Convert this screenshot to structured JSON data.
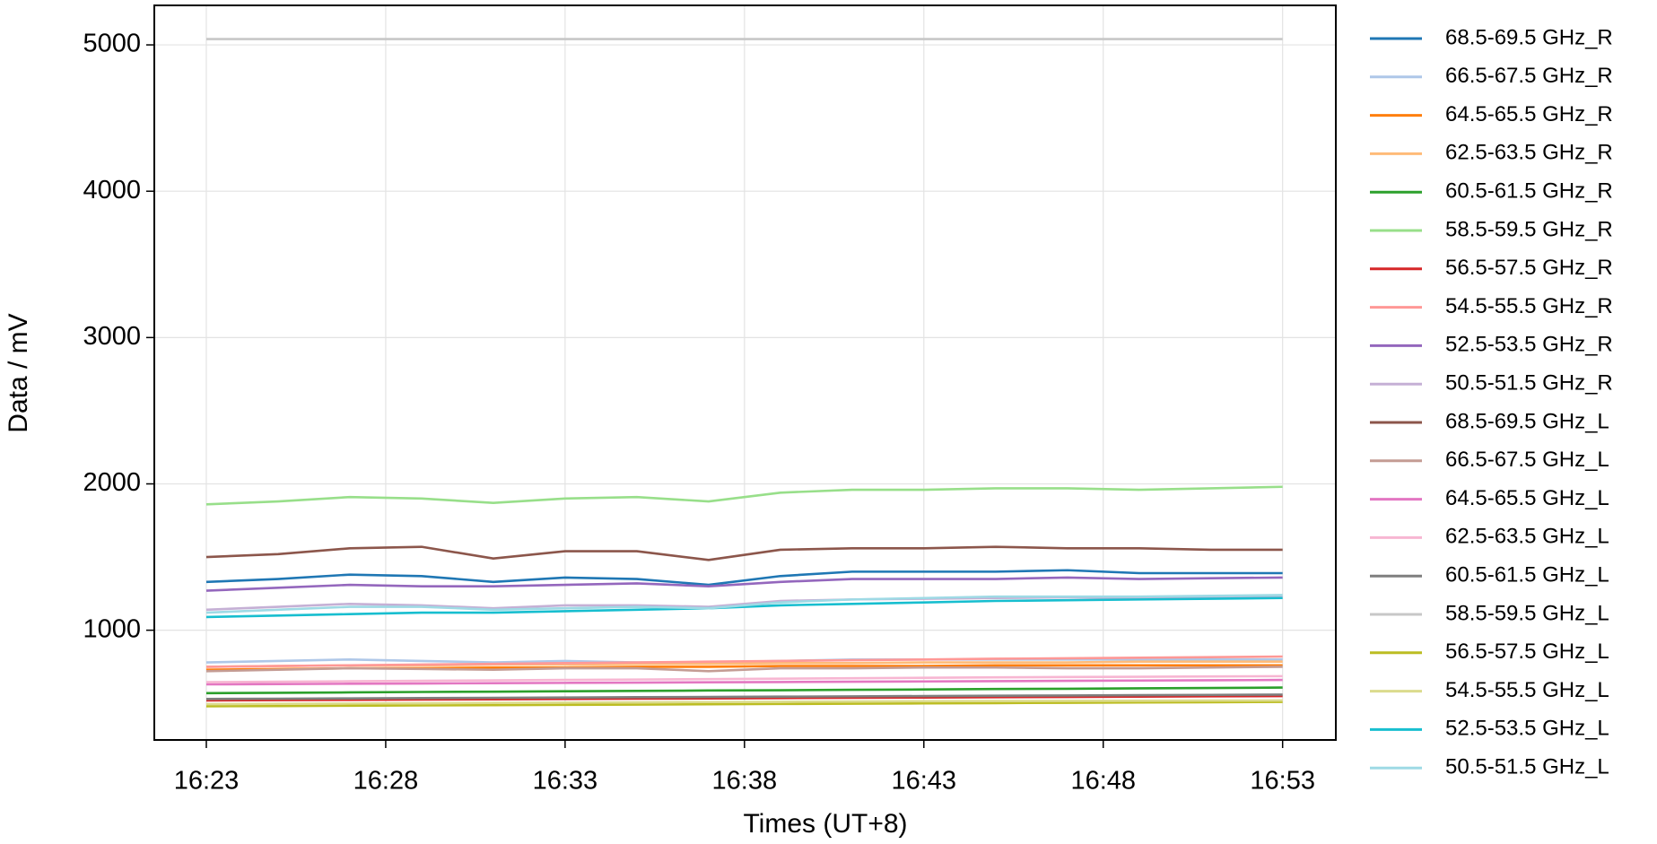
{
  "chart_data": {
    "type": "line",
    "xlabel": "Times (UT+8)",
    "ylabel": "Data / mV",
    "x": [
      "16:23",
      "16:25",
      "16:27",
      "16:29",
      "16:31",
      "16:33",
      "16:35",
      "16:37",
      "16:39",
      "16:41",
      "16:43",
      "16:45",
      "16:47",
      "16:49",
      "16:51",
      "16:53"
    ],
    "xlim": [
      "16:21:33",
      "16:54:29"
    ],
    "xticks": [
      "16:23",
      "16:28",
      "16:33",
      "16:38",
      "16:43",
      "16:48",
      "16:53"
    ],
    "ylim": [
      250,
      5270
    ],
    "yticks": [
      1000,
      2000,
      3000,
      4000,
      5000
    ],
    "grid": true,
    "legend": "outside right",
    "series": [
      {
        "name": "68.5-69.5 GHz_R",
        "color": "#1f77b4",
        "values": [
          1330,
          1350,
          1380,
          1370,
          1330,
          1360,
          1350,
          1310,
          1370,
          1400,
          1400,
          1400,
          1410,
          1390,
          1390,
          1390
        ]
      },
      {
        "name": "66.5-67.5 GHz_R",
        "color": "#aec7e8",
        "values": [
          780,
          790,
          800,
          790,
          780,
          790,
          780,
          780,
          790,
          800,
          800,
          800,
          800,
          800,
          800,
          800
        ]
      },
      {
        "name": "64.5-65.5 GHz_R",
        "color": "#ff7f0e",
        "values": [
          730,
          735,
          740,
          740,
          745,
          745,
          750,
          750,
          755,
          755,
          755,
          760,
          760,
          760,
          760,
          760
        ]
      },
      {
        "name": "62.5-63.5 GHz_R",
        "color": "#ffbb78",
        "values": [
          750,
          755,
          760,
          760,
          765,
          765,
          770,
          770,
          775,
          775,
          780,
          780,
          780,
          785,
          785,
          785
        ]
      },
      {
        "name": "60.5-61.5 GHz_R",
        "color": "#2ca02c",
        "values": [
          570,
          572,
          575,
          578,
          580,
          583,
          585,
          588,
          590,
          593,
          595,
          598,
          600,
          603,
          605,
          608
        ]
      },
      {
        "name": "58.5-59.5 GHz_R",
        "color": "#98df8a",
        "values": [
          1860,
          1880,
          1910,
          1900,
          1870,
          1900,
          1910,
          1880,
          1940,
          1960,
          1960,
          1970,
          1970,
          1960,
          1970,
          1980
        ]
      },
      {
        "name": "56.5-57.5 GHz_R",
        "color": "#d62728",
        "values": [
          520,
          522,
          524,
          526,
          528,
          530,
          532,
          534,
          536,
          538,
          540,
          542,
          544,
          546,
          548,
          550
        ]
      },
      {
        "name": "54.5-55.5 GHz_R",
        "color": "#ff9896",
        "values": [
          750,
          755,
          760,
          765,
          770,
          775,
          780,
          785,
          790,
          795,
          800,
          805,
          808,
          812,
          816,
          820
        ]
      },
      {
        "name": "52.5-53.5 GHz_R",
        "color": "#9467bd",
        "values": [
          1270,
          1290,
          1310,
          1300,
          1300,
          1310,
          1320,
          1300,
          1330,
          1350,
          1350,
          1350,
          1360,
          1350,
          1355,
          1360
        ]
      },
      {
        "name": "50.5-51.5 GHz_R",
        "color": "#c5b0d5",
        "values": [
          1140,
          1160,
          1180,
          1170,
          1150,
          1170,
          1170,
          1160,
          1200,
          1210,
          1215,
          1220,
          1225,
          1220,
          1225,
          1230
        ]
      },
      {
        "name": "68.5-69.5 GHz_L",
        "color": "#8c564b",
        "values": [
          1500,
          1520,
          1560,
          1570,
          1490,
          1540,
          1540,
          1480,
          1550,
          1560,
          1560,
          1570,
          1560,
          1560,
          1550,
          1550
        ]
      },
      {
        "name": "66.5-67.5 GHz_L",
        "color": "#c49c94",
        "values": [
          720,
          730,
          740,
          735,
          730,
          740,
          740,
          720,
          740,
          740,
          745,
          745,
          740,
          740,
          745,
          750
        ]
      },
      {
        "name": "64.5-65.5 GHz_L",
        "color": "#e377c2",
        "values": [
          630,
          632,
          634,
          636,
          638,
          640,
          642,
          644,
          646,
          648,
          650,
          652,
          654,
          656,
          658,
          660
        ]
      },
      {
        "name": "62.5-63.5 GHz_L",
        "color": "#f7b6d2",
        "values": [
          645,
          648,
          651,
          654,
          657,
          660,
          663,
          666,
          669,
          672,
          675,
          678,
          680,
          682,
          684,
          686
        ]
      },
      {
        "name": "60.5-61.5 GHz_L",
        "color": "#7f7f7f",
        "values": [
          530,
          532,
          534,
          536,
          538,
          540,
          542,
          544,
          546,
          548,
          550,
          552,
          554,
          556,
          558,
          560
        ]
      },
      {
        "name": "58.5-59.5 GHz_L",
        "color": "#c7c7c7",
        "values": [
          5040,
          5040,
          5040,
          5040,
          5040,
          5040,
          5040,
          5040,
          5040,
          5040,
          5040,
          5040,
          5040,
          5040,
          5040,
          5040
        ]
      },
      {
        "name": "56.5-57.5 GHz_L",
        "color": "#bcbd22",
        "values": [
          480,
          482,
          484,
          486,
          488,
          490,
          492,
          494,
          496,
          498,
          500,
          502,
          504,
          506,
          508,
          510
        ]
      },
      {
        "name": "54.5-55.5 GHz_L",
        "color": "#dbdb8d",
        "values": [
          495,
          497,
          499,
          501,
          503,
          505,
          507,
          509,
          511,
          513,
          515,
          516,
          517,
          518,
          519,
          520
        ]
      },
      {
        "name": "52.5-53.5 GHz_L",
        "color": "#17becf",
        "values": [
          1090,
          1100,
          1110,
          1120,
          1120,
          1130,
          1140,
          1150,
          1170,
          1180,
          1190,
          1200,
          1205,
          1210,
          1215,
          1220
        ]
      },
      {
        "name": "50.5-51.5 GHz_L",
        "color": "#9edae5",
        "values": [
          1120,
          1140,
          1160,
          1160,
          1140,
          1150,
          1160,
          1150,
          1190,
          1210,
          1220,
          1230,
          1230,
          1230,
          1235,
          1240
        ]
      }
    ]
  }
}
